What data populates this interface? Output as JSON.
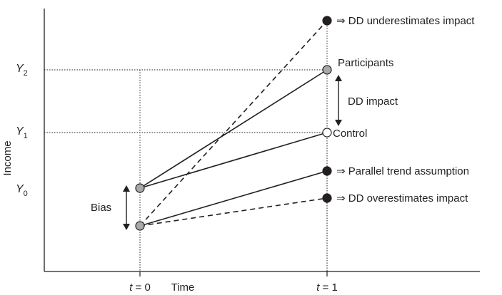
{
  "axes": {
    "y_label": "Income",
    "x_label": "Time",
    "y_ticks": [
      {
        "var": "Y",
        "sub": "2"
      },
      {
        "var": "Y",
        "sub": "1"
      },
      {
        "var": "Y",
        "sub": "0"
      }
    ],
    "x_ticks": [
      {
        "var": "t",
        "rest": " = 0"
      },
      {
        "var": "t",
        "rest": " = 1"
      }
    ]
  },
  "annotations": {
    "underestimates": "⇒ DD underestimates impact",
    "participants": "Participants",
    "dd_impact": "DD impact",
    "control": "Control",
    "parallel": "⇒ Parallel trend assumption",
    "overestimates": "⇒ DD overestimates impact",
    "bias": "Bias"
  },
  "colors": {
    "ink": "#231f20",
    "grey_marker": "#a7a9ac",
    "open_marker": "#ffffff",
    "filled_marker": "#231f20"
  }
}
